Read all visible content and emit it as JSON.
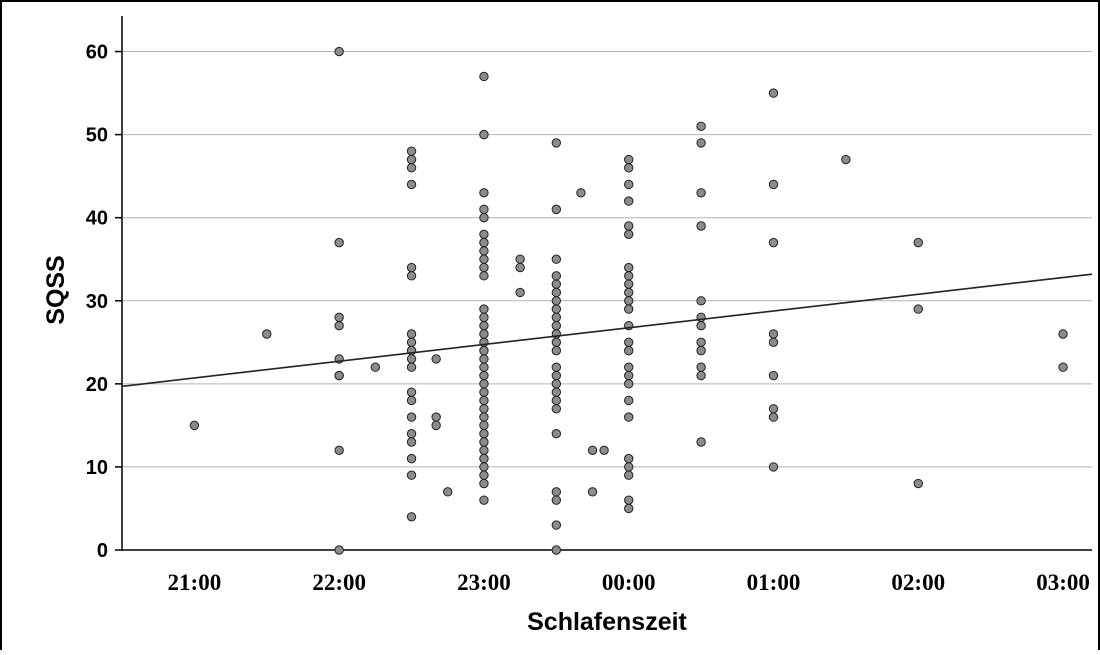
{
  "chart_data": {
    "type": "scatter",
    "xlabel": "Schlafenszeit",
    "ylabel": "SQSS",
    "xlim": [
      20.5,
      27.2
    ],
    "ylim": [
      0,
      65
    ],
    "x_ticks": [
      21,
      22,
      23,
      24,
      25,
      26,
      27
    ],
    "x_tick_labels": [
      "21:00",
      "22:00",
      "23:00",
      "00:00",
      "01:00",
      "02:00",
      "03:00"
    ],
    "y_ticks": [
      0,
      10,
      20,
      30,
      40,
      50,
      60
    ],
    "y_tick_labels": [
      "0",
      "10",
      "20",
      "30",
      "40",
      "50",
      "60"
    ],
    "grid": "horizontal",
    "colors": {
      "point_fill": "#8c8c8c",
      "point_stroke": "#222222",
      "gridline": "#b4b4b4",
      "fit_line": "#222222"
    },
    "fit_line": {
      "x": [
        20.5,
        27.2
      ],
      "y": [
        19.7,
        33.2
      ]
    },
    "points": [
      [
        21.0,
        15
      ],
      [
        21.5,
        26
      ],
      [
        22.0,
        60
      ],
      [
        22.0,
        37
      ],
      [
        22.0,
        28
      ],
      [
        22.0,
        27
      ],
      [
        22.0,
        23
      ],
      [
        22.0,
        21
      ],
      [
        22.0,
        21
      ],
      [
        22.0,
        12
      ],
      [
        22.0,
        0
      ],
      [
        22.25,
        22
      ],
      [
        22.5,
        48
      ],
      [
        22.5,
        47
      ],
      [
        22.5,
        46
      ],
      [
        22.5,
        44
      ],
      [
        22.5,
        34
      ],
      [
        22.5,
        33
      ],
      [
        22.5,
        26
      ],
      [
        22.5,
        25
      ],
      [
        22.5,
        24
      ],
      [
        22.5,
        23
      ],
      [
        22.5,
        22
      ],
      [
        22.5,
        19
      ],
      [
        22.5,
        18
      ],
      [
        22.5,
        16
      ],
      [
        22.5,
        14
      ],
      [
        22.5,
        13
      ],
      [
        22.5,
        11
      ],
      [
        22.5,
        9
      ],
      [
        22.5,
        4
      ],
      [
        22.67,
        23
      ],
      [
        22.67,
        16
      ],
      [
        22.67,
        15
      ],
      [
        22.75,
        7
      ],
      [
        23.0,
        57
      ],
      [
        23.0,
        50
      ],
      [
        23.0,
        43
      ],
      [
        23.0,
        41
      ],
      [
        23.0,
        40
      ],
      [
        23.0,
        38
      ],
      [
        23.0,
        37
      ],
      [
        23.0,
        36
      ],
      [
        23.0,
        35
      ],
      [
        23.0,
        34
      ],
      [
        23.0,
        33
      ],
      [
        23.0,
        29
      ],
      [
        23.0,
        28
      ],
      [
        23.0,
        27
      ],
      [
        23.0,
        26
      ],
      [
        23.0,
        25
      ],
      [
        23.0,
        24
      ],
      [
        23.0,
        23
      ],
      [
        23.0,
        22
      ],
      [
        23.0,
        21
      ],
      [
        23.0,
        20
      ],
      [
        23.0,
        19
      ],
      [
        23.0,
        18
      ],
      [
        23.0,
        17
      ],
      [
        23.0,
        16
      ],
      [
        23.0,
        15
      ],
      [
        23.0,
        14
      ],
      [
        23.0,
        13
      ],
      [
        23.0,
        12
      ],
      [
        23.0,
        11
      ],
      [
        23.0,
        10
      ],
      [
        23.0,
        9
      ],
      [
        23.0,
        8
      ],
      [
        23.0,
        6
      ],
      [
        23.25,
        35
      ],
      [
        23.25,
        34
      ],
      [
        23.25,
        31
      ],
      [
        23.5,
        49
      ],
      [
        23.5,
        41
      ],
      [
        23.5,
        35
      ],
      [
        23.5,
        33
      ],
      [
        23.5,
        32
      ],
      [
        23.5,
        31
      ],
      [
        23.5,
        30
      ],
      [
        23.5,
        29
      ],
      [
        23.5,
        28
      ],
      [
        23.5,
        27
      ],
      [
        23.5,
        26
      ],
      [
        23.5,
        25
      ],
      [
        23.5,
        24
      ],
      [
        23.5,
        22
      ],
      [
        23.5,
        21
      ],
      [
        23.5,
        20
      ],
      [
        23.5,
        19
      ],
      [
        23.5,
        18
      ],
      [
        23.5,
        17
      ],
      [
        23.5,
        14
      ],
      [
        23.5,
        7
      ],
      [
        23.5,
        6
      ],
      [
        23.5,
        3
      ],
      [
        23.5,
        0
      ],
      [
        23.67,
        43
      ],
      [
        23.75,
        12
      ],
      [
        23.75,
        7
      ],
      [
        23.83,
        12
      ],
      [
        24.0,
        47
      ],
      [
        24.0,
        46
      ],
      [
        24.0,
        44
      ],
      [
        24.0,
        42
      ],
      [
        24.0,
        39
      ],
      [
        24.0,
        38
      ],
      [
        24.0,
        34
      ],
      [
        24.0,
        33
      ],
      [
        24.0,
        32
      ],
      [
        24.0,
        31
      ],
      [
        24.0,
        30
      ],
      [
        24.0,
        29
      ],
      [
        24.0,
        27
      ],
      [
        24.0,
        25
      ],
      [
        24.0,
        24
      ],
      [
        24.0,
        22
      ],
      [
        24.0,
        21
      ],
      [
        24.0,
        20
      ],
      [
        24.0,
        18
      ],
      [
        24.0,
        16
      ],
      [
        24.0,
        11
      ],
      [
        24.0,
        10
      ],
      [
        24.0,
        9
      ],
      [
        24.0,
        6
      ],
      [
        24.0,
        5
      ],
      [
        24.5,
        51
      ],
      [
        24.5,
        49
      ],
      [
        24.5,
        43
      ],
      [
        24.5,
        39
      ],
      [
        24.5,
        30
      ],
      [
        24.5,
        28
      ],
      [
        24.5,
        27
      ],
      [
        24.5,
        25
      ],
      [
        24.5,
        24
      ],
      [
        24.5,
        22
      ],
      [
        24.5,
        21
      ],
      [
        24.5,
        13
      ],
      [
        25.0,
        55
      ],
      [
        25.0,
        44
      ],
      [
        25.0,
        37
      ],
      [
        25.0,
        26
      ],
      [
        25.0,
        25
      ],
      [
        25.0,
        21
      ],
      [
        25.0,
        17
      ],
      [
        25.0,
        16
      ],
      [
        25.0,
        10
      ],
      [
        25.5,
        47
      ],
      [
        26.0,
        37
      ],
      [
        26.0,
        29
      ],
      [
        26.0,
        8
      ],
      [
        27.0,
        26
      ],
      [
        27.0,
        22
      ]
    ]
  }
}
